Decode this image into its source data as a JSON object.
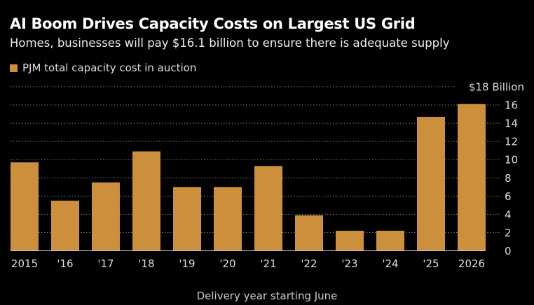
{
  "title": "AI Boom Drives Capacity Costs on Largest US Grid",
  "subtitle": "Homes, businesses will pay $16.1 billion to ensure there is adequate supply",
  "chart_data": {
    "type": "bar",
    "title": "AI Boom Drives Capacity Costs on Largest US Grid",
    "legend": [
      "PJM total capacity cost in auction"
    ],
    "legend_placement": "top-left",
    "categories": [
      "2015",
      "'16",
      "'17",
      "'18",
      "'19",
      "'20",
      "'21",
      "'22",
      "'23",
      "'24",
      "'25",
      "2026"
    ],
    "series": [
      {
        "name": "PJM total capacity cost in auction",
        "values": [
          9.7,
          5.5,
          7.5,
          10.9,
          7.0,
          7.0,
          9.3,
          3.9,
          2.2,
          2.2,
          14.7,
          16.1
        ]
      }
    ],
    "xlabel": "Delivery year starting June",
    "ylabel": "",
    "ylim": [
      0,
      18
    ],
    "yticks": [
      "0",
      "2",
      "4",
      "6",
      "8",
      "10",
      "12",
      "14",
      "16",
      "$18 Billion"
    ],
    "ytick_values": [
      0,
      2,
      4,
      6,
      8,
      10,
      12,
      14,
      16,
      18
    ],
    "grid": true,
    "y_axis_side": "right",
    "colors": {
      "bar": "#cc8f3c",
      "background": "#000000",
      "grid": "#777777"
    }
  }
}
